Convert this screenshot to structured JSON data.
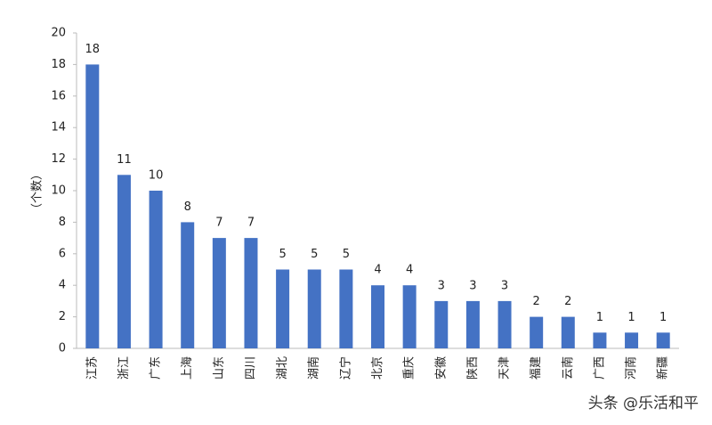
{
  "chart_data": {
    "type": "bar",
    "y_label": "（个数）",
    "categories": [
      "江苏",
      "浙江",
      "广东",
      "上海",
      "山东",
      "四川",
      "湖北",
      "湖南",
      "辽宁",
      "北京",
      "重庆",
      "安徽",
      "陕西",
      "天津",
      "福建",
      "云南",
      "广西",
      "河南",
      "新疆"
    ],
    "values": [
      18,
      11,
      10,
      8,
      7,
      7,
      5,
      5,
      5,
      4,
      4,
      3,
      3,
      3,
      2,
      2,
      1,
      1,
      1
    ],
    "color": "#4472c4",
    "ylim": [
      0,
      20
    ],
    "yticks": [
      0,
      2,
      4,
      6,
      8,
      10,
      12,
      14,
      16,
      18,
      20
    ]
  },
  "watermark": "头条 @乐活和平"
}
